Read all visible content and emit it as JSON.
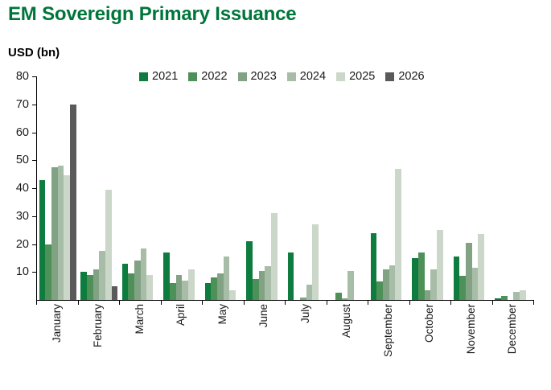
{
  "title": "EM Sovereign Primary Issuance",
  "y_axis_label": "USD (bn)",
  "colors": {
    "title": "#00753B",
    "axis": "#000000",
    "text": "#1A1A1A"
  },
  "chart_data": {
    "type": "bar",
    "title": "EM Sovereign Primary Issuance",
    "ylabel": "USD (bn)",
    "xlabel": "",
    "categories": [
      "January",
      "February",
      "March",
      "April",
      "May",
      "June",
      "July",
      "August",
      "September",
      "October",
      "November",
      "December"
    ],
    "series": [
      {
        "name": "2021",
        "color": "#0E7C3E",
        "values": [
          43,
          10,
          13,
          17,
          6,
          21,
          17,
          0,
          24,
          15,
          15.5,
          0.5
        ]
      },
      {
        "name": "2022",
        "color": "#4E9158",
        "values": [
          20,
          9,
          9.5,
          6,
          8,
          7.5,
          0,
          2.5,
          6.5,
          17,
          8.5,
          1.5
        ]
      },
      {
        "name": "2023",
        "color": "#81A384",
        "values": [
          47.5,
          11,
          14,
          9,
          9.5,
          10.5,
          1,
          0.5,
          11,
          3.5,
          20.5,
          0
        ]
      },
      {
        "name": "2024",
        "color": "#A8BDA7",
        "values": [
          48,
          17.5,
          18.5,
          7,
          15.5,
          12,
          5.5,
          10.5,
          12.5,
          11,
          11.5,
          3
        ]
      },
      {
        "name": "2025",
        "color": "#CBD7C8",
        "values": [
          44.5,
          39.5,
          9,
          11,
          3.5,
          31,
          27,
          0,
          47,
          25,
          23.5,
          3.5
        ]
      },
      {
        "name": "2026",
        "color": "#5A5A5A",
        "values": [
          70,
          5,
          0,
          0,
          0,
          0,
          0,
          0,
          0,
          0,
          0,
          0
        ]
      }
    ],
    "ylim": [
      0,
      80
    ],
    "yticks": [
      10,
      20,
      30,
      40,
      50,
      60,
      70,
      80
    ],
    "grid": false,
    "legend_position": "top"
  }
}
